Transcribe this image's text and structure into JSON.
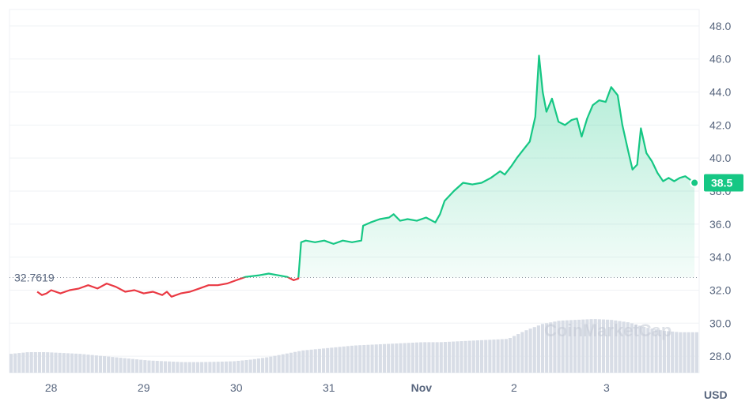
{
  "chart_data": {
    "type": "line",
    "xlabel": "",
    "ylabel": "",
    "currency": "USD",
    "watermark": "CoinMarketCap",
    "ylim": [
      27,
      49
    ],
    "y_ticks": [
      "28.0",
      "30.0",
      "32.0",
      "34.0",
      "36.0",
      "38.0",
      "40.0",
      "42.0",
      "44.0",
      "46.0",
      "48.0"
    ],
    "y_tick_values": [
      28,
      30,
      32,
      34,
      36,
      38,
      40,
      42,
      44,
      46,
      48
    ],
    "x_ticks": [
      {
        "label": "28",
        "day": 0.35
      },
      {
        "label": "29",
        "day": 1.35
      },
      {
        "label": "30",
        "day": 2.35
      },
      {
        "label": "31",
        "day": 3.35
      },
      {
        "label": "Nov",
        "day": 4.35,
        "bold": true
      },
      {
        "label": "2",
        "day": 5.35
      },
      {
        "label": "3",
        "day": 6.35
      }
    ],
    "baseline": {
      "value": 32.7619,
      "label": "32.7619"
    },
    "current": {
      "value": 38.5,
      "label": "38.5"
    },
    "colors": {
      "up": "#16c784",
      "down": "#ea3943",
      "grid": "#eff2f5",
      "volume": "#d8dde6",
      "axis_text": "#58667e"
    },
    "series": [
      {
        "points": [
          [
            0.2,
            31.9
          ],
          [
            0.25,
            31.7
          ],
          [
            0.3,
            31.8
          ],
          [
            0.35,
            32.0
          ],
          [
            0.45,
            31.8
          ],
          [
            0.55,
            32.0
          ],
          [
            0.65,
            32.1
          ],
          [
            0.75,
            32.3
          ],
          [
            0.85,
            32.1
          ],
          [
            0.95,
            32.4
          ],
          [
            1.05,
            32.2
          ],
          [
            1.15,
            31.9
          ],
          [
            1.25,
            32.0
          ],
          [
            1.35,
            31.8
          ],
          [
            1.45,
            31.9
          ],
          [
            1.55,
            31.7
          ],
          [
            1.6,
            31.9
          ],
          [
            1.65,
            31.6
          ],
          [
            1.75,
            31.8
          ],
          [
            1.85,
            31.9
          ],
          [
            1.95,
            32.1
          ],
          [
            2.05,
            32.3
          ],
          [
            2.15,
            32.3
          ],
          [
            2.25,
            32.4
          ],
          [
            2.35,
            32.6
          ],
          [
            2.45,
            32.8
          ],
          [
            2.6,
            32.9
          ],
          [
            2.7,
            33.0
          ],
          [
            2.8,
            32.9
          ],
          [
            2.9,
            32.8
          ],
          [
            2.97,
            32.6
          ],
          [
            3.02,
            32.7
          ],
          [
            3.05,
            34.9
          ],
          [
            3.1,
            35.0
          ],
          [
            3.2,
            34.9
          ],
          [
            3.3,
            35.0
          ],
          [
            3.4,
            34.8
          ],
          [
            3.5,
            35.0
          ],
          [
            3.6,
            34.9
          ],
          [
            3.7,
            35.0
          ],
          [
            3.72,
            35.9
          ],
          [
            3.8,
            36.1
          ],
          [
            3.9,
            36.3
          ],
          [
            4.0,
            36.4
          ],
          [
            4.05,
            36.6
          ],
          [
            4.12,
            36.2
          ],
          [
            4.2,
            36.3
          ],
          [
            4.3,
            36.2
          ],
          [
            4.4,
            36.4
          ],
          [
            4.5,
            36.1
          ],
          [
            4.55,
            36.6
          ],
          [
            4.6,
            37.4
          ],
          [
            4.7,
            38.0
          ],
          [
            4.8,
            38.5
          ],
          [
            4.9,
            38.4
          ],
          [
            5.0,
            38.5
          ],
          [
            5.1,
            38.8
          ],
          [
            5.2,
            39.2
          ],
          [
            5.25,
            39.0
          ],
          [
            5.32,
            39.5
          ],
          [
            5.38,
            40.0
          ],
          [
            5.45,
            40.5
          ],
          [
            5.52,
            41.0
          ],
          [
            5.58,
            42.5
          ],
          [
            5.62,
            46.2
          ],
          [
            5.66,
            44.0
          ],
          [
            5.7,
            42.8
          ],
          [
            5.76,
            43.6
          ],
          [
            5.83,
            42.2
          ],
          [
            5.9,
            42.0
          ],
          [
            5.97,
            42.3
          ],
          [
            6.03,
            42.4
          ],
          [
            6.08,
            41.3
          ],
          [
            6.14,
            42.4
          ],
          [
            6.2,
            43.2
          ],
          [
            6.27,
            43.5
          ],
          [
            6.34,
            43.4
          ],
          [
            6.4,
            44.3
          ],
          [
            6.47,
            43.8
          ],
          [
            6.52,
            42.0
          ],
          [
            6.58,
            40.5
          ],
          [
            6.63,
            39.3
          ],
          [
            6.68,
            39.6
          ],
          [
            6.72,
            41.8
          ],
          [
            6.78,
            40.3
          ],
          [
            6.84,
            39.8
          ],
          [
            6.9,
            39.1
          ],
          [
            6.96,
            38.6
          ],
          [
            7.02,
            38.8
          ],
          [
            7.08,
            38.6
          ],
          [
            7.14,
            38.8
          ],
          [
            7.2,
            38.9
          ],
          [
            7.25,
            38.7
          ],
          [
            7.3,
            38.5
          ]
        ]
      }
    ],
    "volume": [
      0.9,
      1.0,
      1.0,
      0.95,
      0.9,
      0.8,
      0.7,
      0.6,
      0.5,
      0.45,
      0.4,
      0.4,
      0.42,
      0.45,
      0.55,
      0.7,
      0.9,
      1.1,
      1.2,
      1.3,
      1.4,
      1.45,
      1.5,
      1.55,
      1.6,
      1.6,
      1.65,
      1.7,
      1.75,
      1.8,
      2.3,
      2.7,
      2.9,
      2.95,
      3.0,
      2.95,
      2.8,
      2.5,
      2.3,
      2.2,
      2.2
    ]
  }
}
